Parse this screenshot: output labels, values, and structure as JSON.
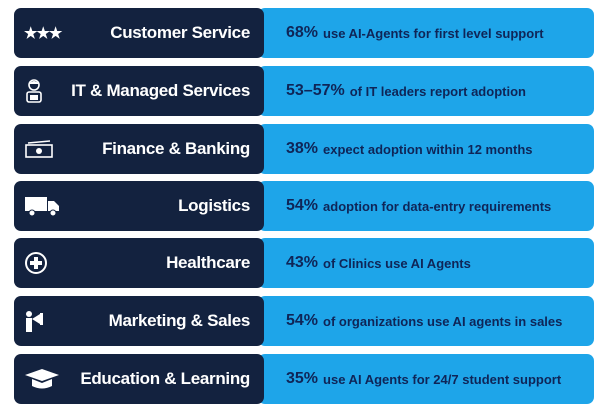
{
  "rows": [
    {
      "icon": "stars-icon",
      "label": "Customer Service",
      "pct": "68%",
      "text": "use AI-Agents for first level support"
    },
    {
      "icon": "developer-icon",
      "label": "IT & Managed Services",
      "pct": "53–57%",
      "text": "of IT leaders report adoption"
    },
    {
      "icon": "money-icon",
      "label": "Finance & Banking",
      "pct": "38%",
      "text": "expect adoption within 12 months"
    },
    {
      "icon": "truck-icon",
      "label": "Logistics",
      "pct": "54%",
      "text": "adoption for data-entry requirements"
    },
    {
      "icon": "medical-cross-icon",
      "label": "Healthcare",
      "pct": "43%",
      "text": "of Clinics use AI Agents"
    },
    {
      "icon": "megaphone-person-icon",
      "label": "Marketing & Sales",
      "pct": "54%",
      "text": "of organizations use AI agents in sales"
    },
    {
      "icon": "graduation-cap-icon",
      "label": "Education & Learning",
      "pct": "35%",
      "text": "use AI Agents for 24/7 student support"
    }
  ],
  "colors": {
    "label_bg": "#13223f",
    "stat_bg": "#1ea5e9",
    "pct_text": "#0f2557"
  }
}
